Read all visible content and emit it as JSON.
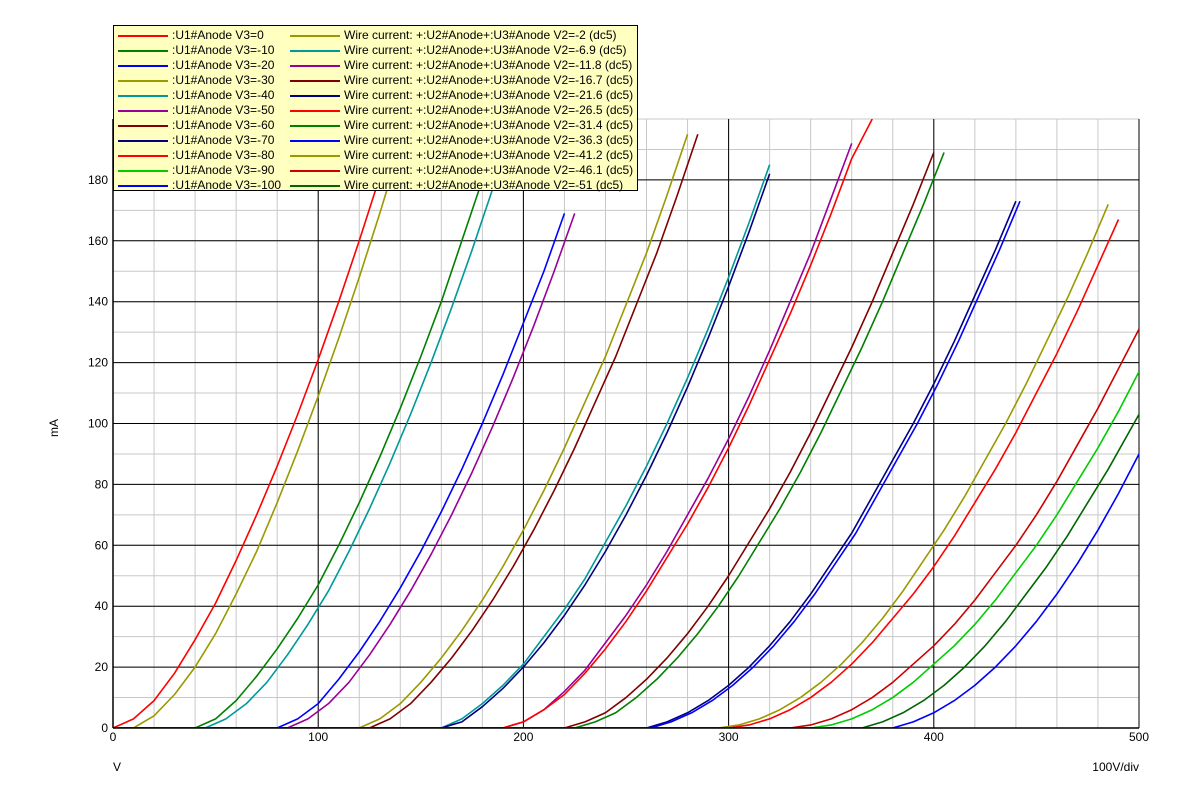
{
  "chart_data": {
    "type": "line",
    "xlabel": "V",
    "ylabel": "mA",
    "x_scale_label": "100V/div",
    "xlim": [
      0,
      500
    ],
    "ylim": [
      0,
      200
    ],
    "x_ticks": [
      0,
      100,
      200,
      300,
      400,
      500
    ],
    "y_ticks": [
      0,
      20,
      40,
      60,
      80,
      100,
      120,
      140,
      160,
      180
    ],
    "grid": true,
    "legend_position": "top-left",
    "series": [
      {
        "name": ":U1#Anode V3=0",
        "color": "#ff0000",
        "x": [
          0,
          10,
          20,
          30,
          40,
          50,
          60,
          70,
          80,
          90,
          100,
          110,
          120,
          130
        ],
        "y": [
          0,
          3,
          9,
          18,
          29,
          41,
          55,
          70,
          86,
          103,
          121,
          140,
          160,
          181
        ]
      },
      {
        "name": ":U1#Anode V3=-10",
        "color": "#008000",
        "x": [
          40,
          50,
          60,
          70,
          80,
          90,
          100,
          110,
          120,
          130,
          140,
          150,
          160,
          170,
          180
        ],
        "y": [
          0,
          3,
          9,
          17,
          26,
          36,
          47,
          60,
          74,
          89,
          105,
          122,
          140,
          160,
          180
        ]
      },
      {
        "name": ":U1#Anode V3=-20",
        "color": "#0000ff",
        "x": [
          80,
          90,
          100,
          110,
          120,
          130,
          140,
          150,
          160,
          170,
          180,
          190,
          200,
          210,
          220
        ],
        "y": [
          0,
          3,
          8,
          16,
          25,
          35,
          46,
          58,
          71,
          85,
          100,
          116,
          133,
          150,
          169
        ]
      },
      {
        "name": ":U1#Anode V3=-30",
        "color": "#999900",
        "x": [
          120,
          130,
          140,
          150,
          160,
          170,
          180,
          190,
          200,
          210,
          220,
          230,
          240,
          250,
          260,
          270,
          280
        ],
        "y": [
          0,
          3,
          8,
          15,
          23,
          32,
          42,
          53,
          65,
          78,
          92,
          107,
          122,
          139,
          156,
          175,
          195
        ]
      },
      {
        "name": ":U1#Anode V3=-40",
        "color": "#009999",
        "x": [
          160,
          170,
          180,
          190,
          200,
          210,
          220,
          230,
          240,
          250,
          260,
          270,
          280,
          290,
          300,
          310,
          320
        ],
        "y": [
          0,
          3,
          8,
          14,
          21,
          30,
          39,
          49,
          61,
          73,
          86,
          100,
          115,
          131,
          148,
          166,
          185
        ]
      },
      {
        "name": ":U1#Anode V3=-50",
        "color": "#990099",
        "x": [
          190,
          200,
          210,
          220,
          230,
          240,
          250,
          260,
          270,
          280,
          290,
          300,
          310,
          320,
          330,
          340,
          350,
          360
        ],
        "y": [
          0,
          2,
          6,
          12,
          19,
          28,
          37,
          47,
          58,
          70,
          82,
          95,
          109,
          124,
          140,
          156,
          174,
          192
        ]
      },
      {
        "name": ":U1#Anode V3=-60",
        "color": "#800000",
        "x": [
          220,
          230,
          240,
          250,
          260,
          270,
          280,
          290,
          300,
          310,
          320,
          330,
          340,
          350,
          360,
          370,
          380,
          390,
          400
        ],
        "y": [
          0,
          2,
          5,
          10,
          16,
          23,
          31,
          40,
          50,
          61,
          72,
          84,
          97,
          111,
          125,
          140,
          156,
          172,
          189
        ]
      },
      {
        "name": ":U1#Anode V3=-70",
        "color": "#000080",
        "x": [
          260,
          270,
          280,
          290,
          300,
          310,
          320,
          330,
          340,
          350,
          360,
          370,
          380,
          390,
          400,
          410,
          420,
          430,
          440
        ],
        "y": [
          0,
          2,
          5,
          9,
          14,
          20,
          27,
          35,
          44,
          54,
          64,
          76,
          88,
          100,
          113,
          127,
          142,
          157,
          173
        ]
      },
      {
        "name": ":U1#Anode V3=-80",
        "color": "#ff0000",
        "x": [
          300,
          310,
          320,
          330,
          340,
          350,
          360,
          370,
          380,
          390,
          400,
          410,
          420,
          430,
          440,
          450,
          460,
          470,
          480,
          490
        ],
        "y": [
          0,
          1,
          3,
          6,
          10,
          15,
          21,
          28,
          36,
          44,
          53,
          63,
          74,
          85,
          97,
          110,
          123,
          137,
          152,
          167
        ]
      },
      {
        "name": ":U1#Anode V3=-90",
        "color": "#00cc00",
        "x": [
          340,
          350,
          360,
          370,
          380,
          390,
          400,
          410,
          420,
          430,
          440,
          450,
          460,
          470,
          480,
          490,
          500
        ],
        "y": [
          0,
          1,
          3,
          6,
          10,
          15,
          21,
          27,
          34,
          42,
          51,
          60,
          70,
          81,
          92,
          104,
          117
        ]
      },
      {
        "name": ":U1#Anode V3=-100",
        "color": "#0000ff",
        "x": [
          380,
          390,
          400,
          410,
          420,
          430,
          440,
          450,
          460,
          470,
          480,
          490,
          500
        ],
        "y": [
          0,
          2,
          5,
          9,
          14,
          20,
          27,
          35,
          44,
          54,
          65,
          77,
          90
        ]
      },
      {
        "name": "Wire current: +:U2#Anode+:U3#Anode V2=-2 (dc5)",
        "color": "#999900",
        "x": [
          10,
          20,
          30,
          40,
          50,
          60,
          70,
          80,
          90,
          100,
          110,
          120,
          130,
          140
        ],
        "y": [
          0,
          4,
          11,
          20,
          31,
          44,
          58,
          74,
          91,
          109,
          128,
          148,
          169,
          191
        ]
      },
      {
        "name": "Wire current: +:U2#Anode+:U3#Anode V2=-6.9 (dc5)",
        "color": "#009999",
        "x": [
          45,
          55,
          65,
          75,
          85,
          95,
          105,
          115,
          125,
          135,
          145,
          155,
          165,
          175,
          185
        ],
        "y": [
          0,
          3,
          8,
          15,
          24,
          34,
          45,
          58,
          72,
          87,
          103,
          120,
          138,
          157,
          177
        ]
      },
      {
        "name": "Wire current: +:U2#Anode+:U3#Anode V2=-11.8 (dc5)",
        "color": "#990099",
        "x": [
          85,
          95,
          105,
          115,
          125,
          135,
          145,
          155,
          165,
          175,
          185,
          195,
          205,
          215,
          225
        ],
        "y": [
          0,
          3,
          8,
          15,
          24,
          34,
          45,
          57,
          70,
          84,
          99,
          115,
          132,
          150,
          169
        ]
      },
      {
        "name": "Wire current: +:U2#Anode+:U3#Anode V2=-16.7 (dc5)",
        "color": "#800000",
        "x": [
          125,
          135,
          145,
          155,
          165,
          175,
          185,
          195,
          205,
          215,
          225,
          235,
          245,
          255,
          265,
          275,
          285
        ],
        "y": [
          0,
          3,
          8,
          15,
          23,
          32,
          42,
          53,
          65,
          78,
          92,
          107,
          122,
          139,
          156,
          175,
          195
        ]
      },
      {
        "name": "Wire current: +:U2#Anode+:U3#Anode V2=-21.6 (dc5)",
        "color": "#000080",
        "x": [
          160,
          170,
          180,
          190,
          200,
          210,
          220,
          230,
          240,
          250,
          260,
          270,
          280,
          290,
          300,
          310,
          320
        ],
        "y": [
          0,
          2,
          7,
          13,
          20,
          28,
          37,
          47,
          58,
          70,
          83,
          97,
          112,
          128,
          145,
          163,
          182
        ]
      },
      {
        "name": "Wire current: +:U2#Anode+:U3#Anode V2=-26.5 (dc5)",
        "color": "#ff0000",
        "x": [
          190,
          200,
          210,
          220,
          230,
          240,
          250,
          260,
          270,
          280,
          290,
          300,
          310,
          320,
          330,
          340,
          350,
          360,
          370
        ],
        "y": [
          0,
          2,
          6,
          11,
          18,
          26,
          35,
          45,
          56,
          67,
          79,
          92,
          106,
          121,
          136,
          152,
          169,
          187,
          200
        ]
      },
      {
        "name": "Wire current: +:U2#Anode+:U3#Anode V2=-31.4 (dc5)",
        "color": "#008000",
        "x": [
          225,
          235,
          245,
          255,
          265,
          275,
          285,
          295,
          305,
          315,
          325,
          335,
          345,
          355,
          365,
          375,
          385,
          395,
          405
        ],
        "y": [
          0,
          2,
          5,
          10,
          16,
          23,
          31,
          40,
          50,
          61,
          72,
          84,
          97,
          111,
          125,
          140,
          156,
          172,
          189
        ]
      },
      {
        "name": "Wire current: +:U2#Anode+:U3#Anode V2=-36.3 (dc5)",
        "color": "#0000ff",
        "x": [
          262,
          272,
          282,
          292,
          302,
          312,
          322,
          332,
          342,
          352,
          362,
          372,
          382,
          392,
          402,
          412,
          422,
          432,
          442
        ],
        "y": [
          0,
          2,
          5,
          9,
          14,
          20,
          27,
          35,
          44,
          54,
          64,
          76,
          88,
          100,
          113,
          127,
          142,
          157,
          173
        ]
      },
      {
        "name": "Wire current: +:U2#Anode+:U3#Anode V2=-41.2 (dc5)",
        "color": "#999900",
        "x": [
          295,
          305,
          315,
          325,
          335,
          345,
          355,
          365,
          375,
          385,
          395,
          405,
          415,
          425,
          435,
          445,
          455,
          465,
          475,
          485
        ],
        "y": [
          0,
          1,
          3,
          6,
          10,
          15,
          21,
          28,
          36,
          45,
          55,
          65,
          76,
          88,
          100,
          113,
          127,
          141,
          156,
          172
        ]
      },
      {
        "name": "Wire current: +:U2#Anode+:U3#Anode V2=-46.1 (dc5)",
        "color": "#cc0000",
        "x": [
          330,
          340,
          350,
          360,
          370,
          380,
          390,
          400,
          410,
          420,
          430,
          440,
          450,
          460,
          470,
          480,
          490,
          500
        ],
        "y": [
          0,
          1,
          3,
          6,
          10,
          15,
          21,
          27,
          34,
          42,
          51,
          60,
          70,
          81,
          93,
          105,
          118,
          131
        ]
      },
      {
        "name": "Wire current: +:U2#Anode+:U3#Anode V2=-51 (dc5)",
        "color": "#006600",
        "x": [
          365,
          375,
          385,
          395,
          405,
          415,
          425,
          435,
          445,
          455,
          465,
          475,
          485,
          495,
          500
        ],
        "y": [
          0,
          2,
          5,
          9,
          14,
          20,
          27,
          35,
          44,
          53,
          63,
          74,
          85,
          97,
          103
        ]
      }
    ]
  }
}
